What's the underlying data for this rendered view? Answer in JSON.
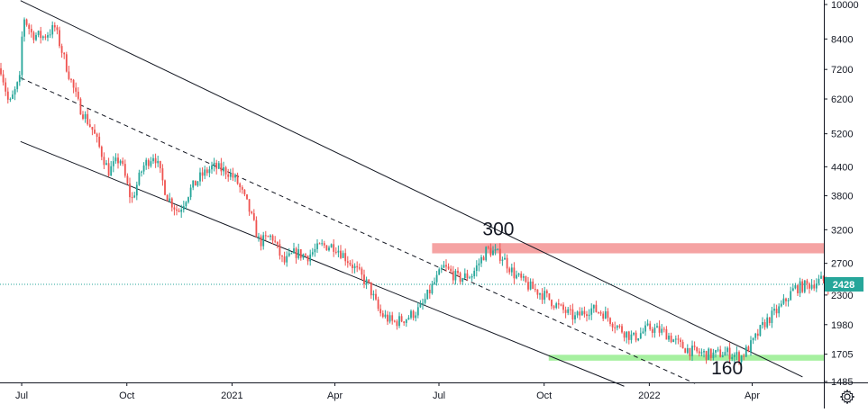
{
  "chart_data": {
    "type": "candlestick",
    "scale": "log",
    "grid": false,
    "x_ticks": [
      "Jul",
      "Oct",
      "2021",
      "Apr",
      "Jul",
      "Oct",
      "2022",
      "Apr"
    ],
    "y_ticks": [
      10000,
      8400,
      7200,
      6200,
      5200,
      4400,
      3800,
      3200,
      2700,
      2300,
      1980,
      1705,
      1485
    ],
    "ylim": [
      1430,
      10400
    ],
    "last_price": "2428",
    "colors": {
      "up": "#26a69a",
      "down": "#ef5350",
      "axis": "#131722",
      "resistance_zone": "#f5a3a3",
      "support_zone": "#a6f0a0",
      "price_line": "#26a69a"
    },
    "close_path": [
      [
        "2020-06-10",
        7800
      ],
      [
        "2020-06-20",
        6000
      ],
      [
        "2020-06-30",
        6900
      ],
      [
        "2020-07-02",
        9500
      ],
      [
        "2020-07-10",
        8600
      ],
      [
        "2020-07-20",
        8500
      ],
      [
        "2020-07-30",
        8900
      ],
      [
        "2020-08-10",
        7200
      ],
      [
        "2020-08-20",
        6000
      ],
      [
        "2020-09-01",
        5300
      ],
      [
        "2020-09-15",
        4300
      ],
      [
        "2020-09-25",
        4600
      ],
      [
        "2020-10-05",
        3700
      ],
      [
        "2020-10-15",
        4400
      ],
      [
        "2020-10-25",
        4700
      ],
      [
        "2020-11-05",
        3800
      ],
      [
        "2020-11-15",
        3500
      ],
      [
        "2020-11-25",
        3900
      ],
      [
        "2020-12-05",
        4200
      ],
      [
        "2020-12-15",
        4400
      ],
      [
        "2020-12-28",
        4300
      ],
      [
        "2021-01-05",
        4100
      ],
      [
        "2021-01-15",
        3600
      ],
      [
        "2021-01-25",
        3000
      ],
      [
        "2021-02-05",
        3100
      ],
      [
        "2021-02-15",
        2700
      ],
      [
        "2021-02-25",
        2850
      ],
      [
        "2021-03-08",
        2800
      ],
      [
        "2021-03-20",
        2950
      ],
      [
        "2021-04-01",
        2950
      ],
      [
        "2021-04-15",
        2700
      ],
      [
        "2021-05-01",
        2400
      ],
      [
        "2021-05-10",
        2100
      ],
      [
        "2021-05-22",
        2000
      ],
      [
        "2021-06-03",
        2050
      ],
      [
        "2021-06-15",
        2150
      ],
      [
        "2021-06-25",
        2400
      ],
      [
        "2021-07-05",
        2650
      ],
      [
        "2021-07-18",
        2500
      ],
      [
        "2021-07-30",
        2550
      ],
      [
        "2021-08-12",
        2900
      ],
      [
        "2021-08-25",
        2800
      ],
      [
        "2021-09-05",
        2550
      ],
      [
        "2021-09-18",
        2400
      ],
      [
        "2021-10-01",
        2300
      ],
      [
        "2021-10-15",
        2150
      ],
      [
        "2021-10-28",
        2050
      ],
      [
        "2021-11-10",
        2150
      ],
      [
        "2021-11-22",
        2100
      ],
      [
        "2021-12-05",
        1950
      ],
      [
        "2021-12-18",
        1850
      ],
      [
        "2022-01-01",
        1950
      ],
      [
        "2022-01-15",
        1900
      ],
      [
        "2022-01-28",
        1780
      ],
      [
        "2022-02-10",
        1720
      ],
      [
        "2022-02-25",
        1700
      ],
      [
        "2022-03-10",
        1720
      ],
      [
        "2022-03-22",
        1680
      ],
      [
        "2022-04-01",
        1800
      ],
      [
        "2022-04-12",
        2000
      ],
      [
        "2022-04-25",
        2150
      ],
      [
        "2022-05-08",
        2380
      ],
      [
        "2022-05-20",
        2420
      ],
      [
        "2022-06-01",
        2480
      ],
      [
        "2022-06-08",
        2428
      ]
    ],
    "channel": {
      "upper": [
        [
          "2020-06-30",
          10200
        ],
        [
          "2022-05-15",
          1520
        ]
      ],
      "middle": [
        [
          "2020-06-30",
          6900
        ],
        [
          "2022-02-10",
          1470
        ]
      ],
      "lower": [
        [
          "2020-06-30",
          5000
        ],
        [
          "2021-12-10",
          1450
        ]
      ]
    },
    "zones": [
      {
        "kind": "resistance",
        "y_low": 2840,
        "y_high": 2990,
        "x_start": "2021-06-25",
        "x_end": "2022-06-12"
      },
      {
        "kind": "support",
        "y_low": 1650,
        "y_high": 1700,
        "x_start": "2021-10-05",
        "x_end": "2022-06-12"
      }
    ],
    "annotations": [
      {
        "text": "300",
        "x": "2021-08-22",
        "y": 3110
      },
      {
        "text": "160",
        "x": "2022-03-10",
        "y": 1540
      }
    ]
  }
}
